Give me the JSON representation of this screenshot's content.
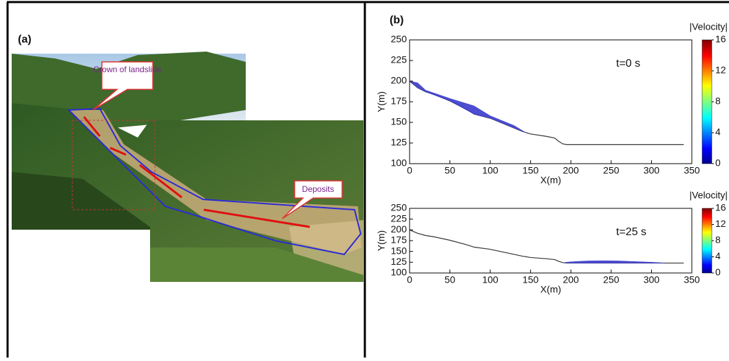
{
  "panel_a": {
    "label": "(a)",
    "callouts": [
      "Crown of landslide",
      "Deposits"
    ]
  },
  "panel_b": {
    "label": "(b)"
  },
  "chart_data": [
    {
      "type": "line",
      "annotation": "t=0 s",
      "xlabel": "X(m)",
      "ylabel": "Y(m)",
      "xlim": [
        0,
        350
      ],
      "ylim": [
        100,
        250
      ],
      "xticks": [
        0,
        50,
        100,
        150,
        200,
        250,
        300,
        350
      ],
      "yticks": [
        100,
        125,
        150,
        175,
        200,
        225,
        250
      ],
      "colorbar_label": "|Velocity|",
      "clim": [
        0,
        16
      ],
      "cticks": [
        0,
        4,
        8,
        12,
        16
      ],
      "series": [
        {
          "color": "#333333",
          "x": [
            0,
            10,
            20,
            30,
            50,
            70,
            80,
            100,
            120,
            140,
            150,
            170,
            180,
            185,
            190,
            195,
            200,
            250,
            300,
            340
          ],
          "values": [
            200,
            192,
            187,
            184,
            176,
            166,
            160,
            155,
            147,
            139,
            136,
            133,
            131,
            127,
            124,
            123,
            123,
            123,
            123,
            123
          ]
        },
        {
          "color": "#3a3acc",
          "fill": true,
          "x": [
            0,
            10,
            20,
            50,
            80,
            100,
            130,
            145
          ],
          "values": [
            200,
            198,
            189,
            179,
            170,
            158,
            146,
            137
          ]
        }
      ]
    },
    {
      "type": "line",
      "annotation": "t=25 s",
      "xlabel": "X(m)",
      "ylabel": "Y(m)",
      "xlim": [
        0,
        350
      ],
      "ylim": [
        100,
        250
      ],
      "xticks": [
        0,
        50,
        100,
        150,
        200,
        250,
        300,
        350
      ],
      "yticks": [
        100,
        125,
        150,
        175,
        200,
        225,
        250
      ],
      "colorbar_label": "|Velocity|",
      "clim": [
        0,
        16
      ],
      "cticks": [
        0,
        4,
        8,
        12,
        16
      ],
      "series": [
        {
          "color": "#333333",
          "x": [
            0,
            10,
            20,
            30,
            50,
            70,
            80,
            100,
            120,
            140,
            150,
            170,
            180,
            185,
            190,
            195,
            200,
            250,
            300,
            340
          ],
          "values": [
            200,
            192,
            187,
            184,
            176,
            166,
            160,
            155,
            147,
            139,
            136,
            133,
            131,
            127,
            124,
            123,
            123,
            123,
            123,
            123
          ]
        },
        {
          "color": "#3a3acc",
          "fill": true,
          "x": [
            190,
            200,
            220,
            240,
            260,
            280,
            300,
            315
          ],
          "values": [
            124,
            126,
            128,
            128.5,
            128,
            126.5,
            125,
            123.5
          ]
        }
      ]
    }
  ]
}
